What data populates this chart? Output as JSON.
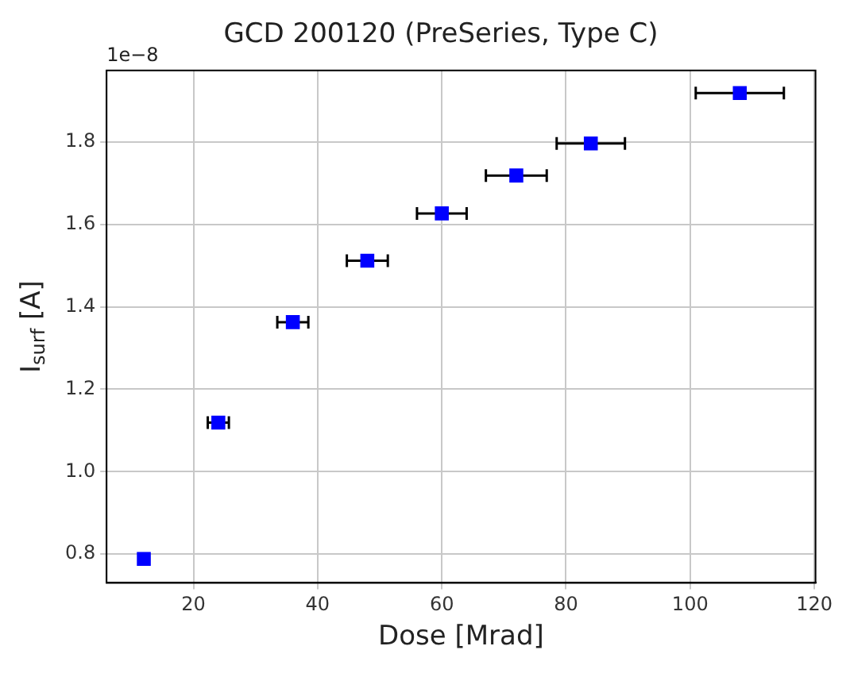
{
  "chart_data": {
    "type": "scatter",
    "title": "GCD 200120 (PreSeries, Type C)",
    "xlabel": "Dose [Mrad]",
    "ylabel": "I$_{surf}$ [A]",
    "annotations": [
      "1e−8"
    ],
    "x": [
      12,
      24,
      36,
      48,
      60,
      72,
      84,
      108
    ],
    "series": [
      {
        "color": "#0000ff",
        "values": [
          0.788,
          1.119,
          1.363,
          1.512,
          1.627,
          1.719,
          1.797,
          1.919
        ],
        "xerrors": [
          null,
          1.7,
          2.5,
          3.3,
          4.0,
          4.9,
          5.5,
          7.1
        ]
      }
    ],
    "marker": "square",
    "grid": true,
    "xlim": [
      6,
      120.2
    ],
    "xticks": [
      20,
      40,
      60,
      80,
      100,
      120
    ],
    "ylim": [
      0.73,
      1.974
    ],
    "yticks": [
      {
        "value": 0.8,
        "label": "0.8"
      },
      {
        "value": 1.0,
        "label": "1.0"
      },
      {
        "value": 1.2,
        "label": "1.2"
      },
      {
        "value": 1.4,
        "label": "1.4"
      },
      {
        "value": 1.6,
        "label": "1.6"
      },
      {
        "value": 1.8,
        "label": "1.8"
      }
    ]
  }
}
